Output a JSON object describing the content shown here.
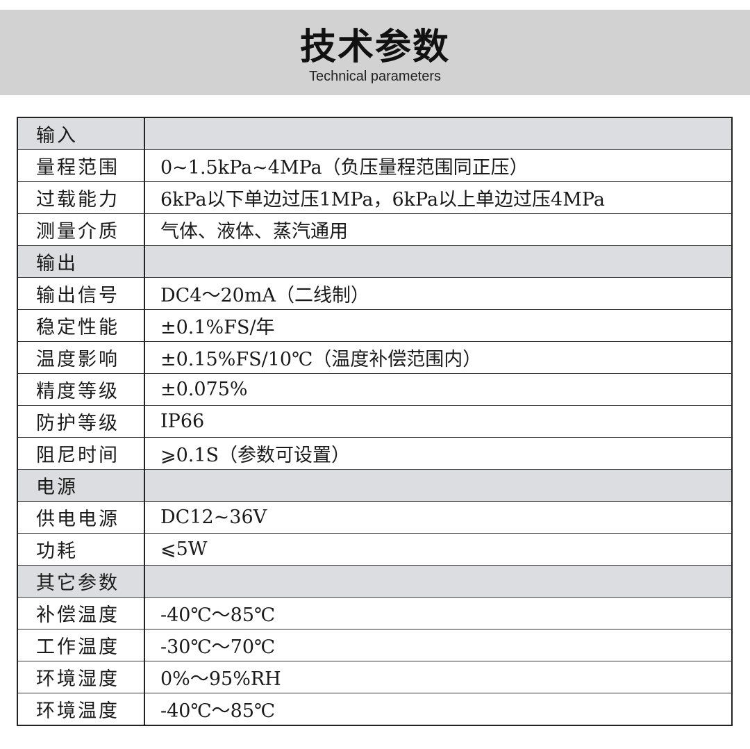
{
  "header": {
    "title": "技术参数",
    "subtitle": "Technical parameters"
  },
  "colors": {
    "banner": "#d2d2d2",
    "section_row": "#dcdde1"
  },
  "rows": [
    {
      "label": "输入",
      "value": "",
      "section": true
    },
    {
      "label": "量程范围",
      "value": "0~1.5kPa~4MPa（负压量程范围同正压）"
    },
    {
      "label": "过载能力",
      "value": "6kPa以下单边过压1MPa，6kPa以上单边过压4MPa"
    },
    {
      "label": "测量介质",
      "value": "气体、液体、蒸汽通用"
    },
    {
      "label": "输出",
      "value": "",
      "section": true
    },
    {
      "label": "输出信号",
      "value": "DC4～20mA（二线制）"
    },
    {
      "label": "稳定性能",
      "value": "±0.1%FS/年"
    },
    {
      "label": "温度影响",
      "value": "±0.15%FS/10℃（温度补偿范围内）"
    },
    {
      "label": "精度等级",
      "value": "±0.075%"
    },
    {
      "label": "防护等级",
      "value": "IP66"
    },
    {
      "label": "阻尼时间",
      "value": "⩾0.1S（参数可设置）"
    },
    {
      "label": "电源",
      "value": "",
      "section": true
    },
    {
      "label": "供电电源",
      "value": "DC12~36V"
    },
    {
      "label": "功耗",
      "value": "⩽5W"
    },
    {
      "label": "其它参数",
      "value": "",
      "section": true
    },
    {
      "label": "补偿温度",
      "value": "-40℃～85℃"
    },
    {
      "label": "工作温度",
      "value": "-30℃～70℃"
    },
    {
      "label": "环境湿度",
      "value": "0%～95%RH"
    },
    {
      "label": "环境温度",
      "value": "-40℃～85℃"
    }
  ]
}
